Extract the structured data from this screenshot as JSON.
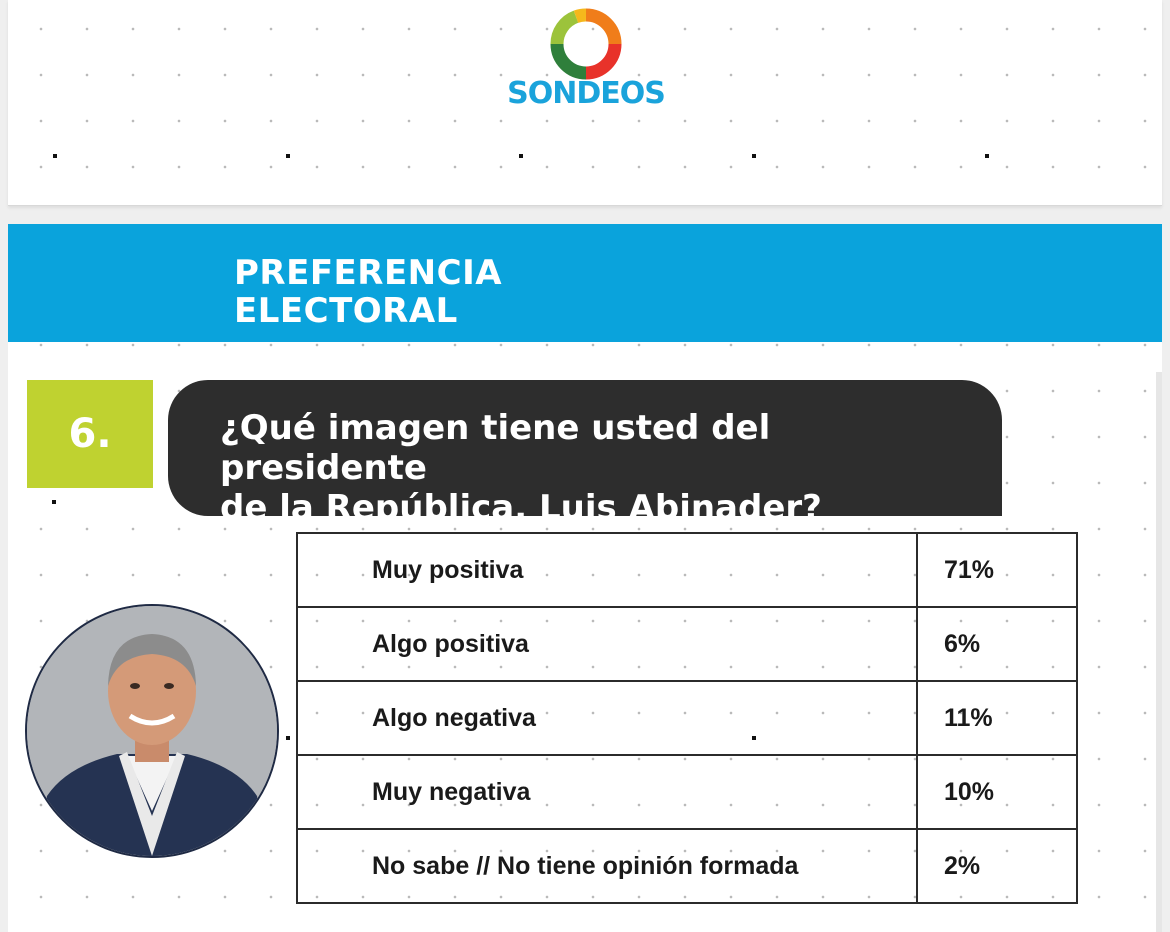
{
  "header": {
    "brand": "SONDEOS",
    "logo_colors": [
      "#f07d1a",
      "#e8322a",
      "#2f7f3b",
      "#9cc33b",
      "#f5b81c"
    ],
    "brand_color": "#1aa3db"
  },
  "slide": {
    "section_title_line1": "PREFERENCIA",
    "section_title_line2": "ELECTORAL",
    "banner_color": "#0aa3dc",
    "question_number": "6.",
    "number_box_color": "#bfd230",
    "question_line1": "¿Qué imagen tiene usted del presidente",
    "question_line2": "de la República, Luis Abinader?",
    "photo_icon": "portrait-photo",
    "results": [
      {
        "label": "Muy positiva",
        "value": "71%"
      },
      {
        "label": "Algo positiva",
        "value": "6%"
      },
      {
        "label": "Algo negativa",
        "value": "11%"
      },
      {
        "label": "Muy negativa",
        "value": "10%"
      },
      {
        "label": "No sabe // No tiene opinión formada",
        "value": "2%"
      }
    ]
  }
}
